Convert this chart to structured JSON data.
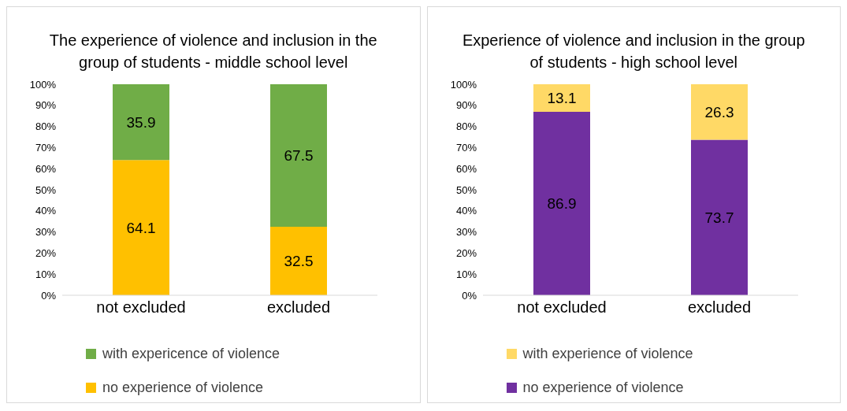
{
  "chart_data": [
    {
      "type": "bar",
      "title": "The experience of violence and inclusion in the group of students - middle school level",
      "categories": [
        "not excluded",
        "excluded"
      ],
      "stacked": true,
      "data_labels": true,
      "legend": "bottom",
      "ylim": [
        0,
        100
      ],
      "yticks": [
        {
          "value": 0,
          "label": "0%"
        },
        {
          "value": 10,
          "label": "10%"
        },
        {
          "value": 20,
          "label": "20%"
        },
        {
          "value": 30,
          "label": "30%"
        },
        {
          "value": 40,
          "label": "40%"
        },
        {
          "value": 50,
          "label": "50%"
        },
        {
          "value": 60,
          "label": "60%"
        },
        {
          "value": 70,
          "label": "70%"
        },
        {
          "value": 80,
          "label": "80%"
        },
        {
          "value": 90,
          "label": "90%"
        },
        {
          "value": 100,
          "label": "100%"
        }
      ],
      "series": [
        {
          "name": "no experience of violence",
          "color": "#ffc000",
          "values": [
            64.1,
            32.5
          ]
        },
        {
          "name": "with expericence of violence",
          "color": "#70ad47",
          "values": [
            35.9,
            67.5
          ]
        }
      ]
    },
    {
      "type": "bar",
      "title": "Experience of violence and inclusion in the group of students - high school level",
      "categories": [
        "not excluded",
        "excluded"
      ],
      "stacked": true,
      "data_labels": true,
      "legend": "bottom",
      "ylim": [
        0,
        100
      ],
      "yticks": [
        {
          "value": 0,
          "label": "0%"
        },
        {
          "value": 10,
          "label": "10%"
        },
        {
          "value": 20,
          "label": "20%"
        },
        {
          "value": 30,
          "label": "30%"
        },
        {
          "value": 40,
          "label": "40%"
        },
        {
          "value": 50,
          "label": "50%"
        },
        {
          "value": 60,
          "label": "60%"
        },
        {
          "value": 70,
          "label": "70%"
        },
        {
          "value": 80,
          "label": "80%"
        },
        {
          "value": 90,
          "label": "90%"
        },
        {
          "value": 100,
          "label": "100%"
        }
      ],
      "series": [
        {
          "name": "no experience of violence",
          "color": "#7030a0",
          "values": [
            86.9,
            73.7
          ]
        },
        {
          "name": "with experience of violence",
          "color": "#ffd966",
          "values": [
            13.1,
            26.3
          ]
        }
      ]
    }
  ]
}
